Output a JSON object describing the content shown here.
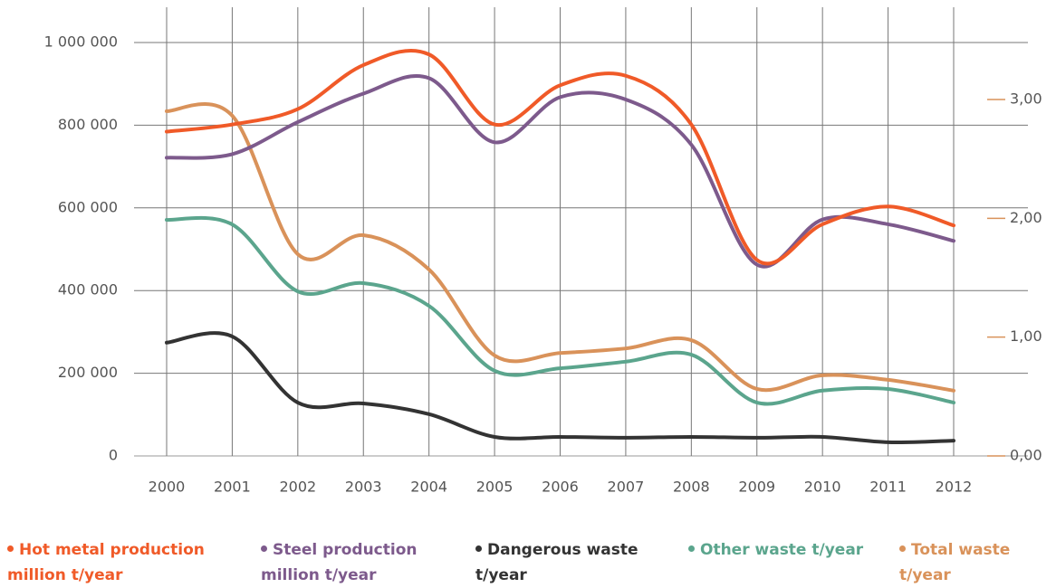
{
  "chart_data": {
    "type": "line",
    "x": [
      2000,
      2001,
      2002,
      2003,
      2004,
      2005,
      2006,
      2007,
      2008,
      2009,
      2010,
      2011,
      2012
    ],
    "xlim": [
      2000,
      2012
    ],
    "xticks": [
      2000,
      2001,
      2002,
      2003,
      2004,
      2005,
      2006,
      2007,
      2008,
      2009,
      2010,
      2011,
      2012
    ],
    "ylim": [
      0,
      1000000
    ],
    "yticks": [
      0,
      {
        "value": 200000,
        "label": "200 000"
      },
      {
        "value": 400000,
        "label": "400 000"
      },
      {
        "value": 600000,
        "label": "600 000"
      },
      {
        "value": 800000,
        "label": "800 000"
      },
      {
        "value": 1000000,
        "label": "1 000 000"
      }
    ],
    "y2lim": [
      0,
      3.48
    ],
    "y2ticks": [
      {
        "value": 0,
        "label": "0,00"
      },
      {
        "value": 1,
        "label": "1,00"
      },
      {
        "value": 2,
        "label": "2,00"
      },
      {
        "value": 3,
        "label": "3,00"
      }
    ],
    "grid": true,
    "smooth": true,
    "y2color": "#d9925a",
    "series": [
      {
        "name": "Hot metal production million t/year",
        "color": "#f05a28",
        "axis": "y2",
        "values": [
          2.73,
          2.79,
          2.92,
          3.29,
          3.38,
          2.79,
          3.12,
          3.2,
          2.79,
          1.65,
          1.95,
          2.1,
          1.94
        ]
      },
      {
        "name": "Steel production million t/year",
        "color": "#7d5a8c",
        "axis": "y2",
        "values": [
          2.51,
          2.54,
          2.81,
          3.05,
          3.18,
          2.64,
          3.02,
          3.0,
          2.62,
          1.61,
          1.99,
          1.95,
          1.81
        ]
      },
      {
        "name": "Dangerous waste t/year",
        "color": "#333333",
        "values": [
          274000,
          289000,
          129000,
          127000,
          101000,
          46000,
          46000,
          44000,
          46000,
          44000,
          46000,
          33000,
          37000
        ]
      },
      {
        "name": "Other waste t/year",
        "color": "#5ba58d",
        "values": [
          571000,
          560000,
          398000,
          418000,
          363000,
          206000,
          212000,
          228000,
          245000,
          129000,
          158000,
          162000,
          129000
        ]
      },
      {
        "name": "Total waste t/year",
        "color": "#d9925a",
        "values": [
          834000,
          823000,
          488000,
          534000,
          451000,
          243000,
          249000,
          260000,
          280000,
          162000,
          195000,
          184000,
          158000
        ]
      }
    ]
  }
}
